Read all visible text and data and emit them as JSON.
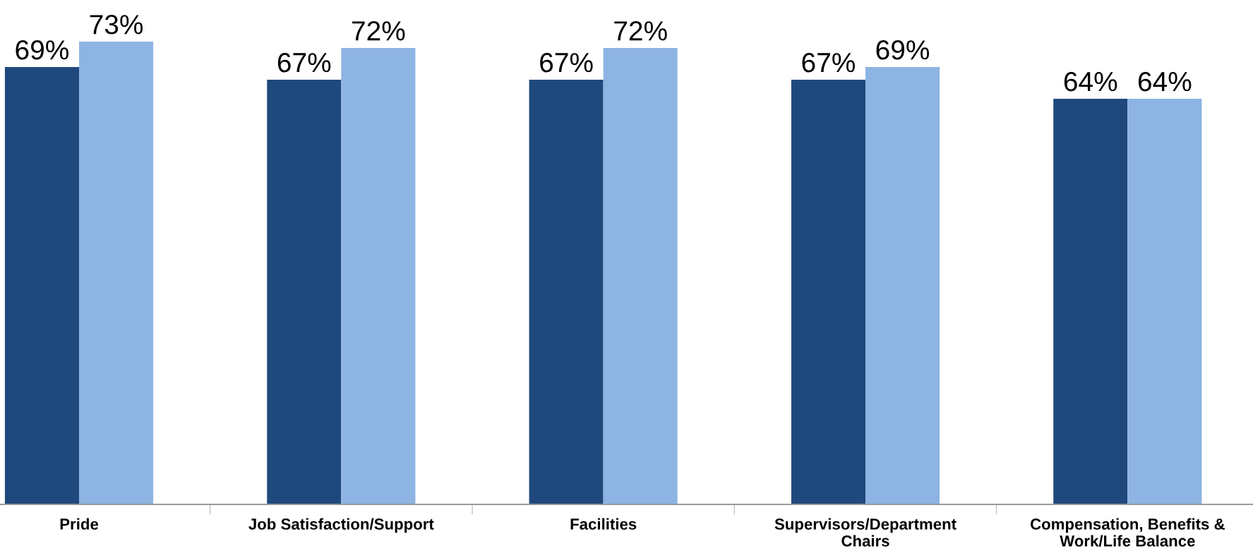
{
  "chart_data": {
    "type": "bar",
    "categories": [
      "Pride",
      "Job Satisfaction/Support",
      "Facilities",
      "Supervisors/Department\nChairs",
      "Compensation, Benefits &\nWork/Life Balance"
    ],
    "series": [
      {
        "color": "#1f497d",
        "values": [
          69,
          67,
          67,
          67,
          64
        ],
        "value_labels": [
          "69%",
          "67%",
          "67%",
          "67%",
          "64%"
        ]
      },
      {
        "color": "#8eb4e3",
        "values": [
          73,
          72,
          72,
          69,
          64
        ],
        "value_labels": [
          "73%",
          "72%",
          "72%",
          "69%",
          "64%"
        ]
      }
    ],
    "tick_labels": "x",
    "grid": false,
    "legend": false
  }
}
